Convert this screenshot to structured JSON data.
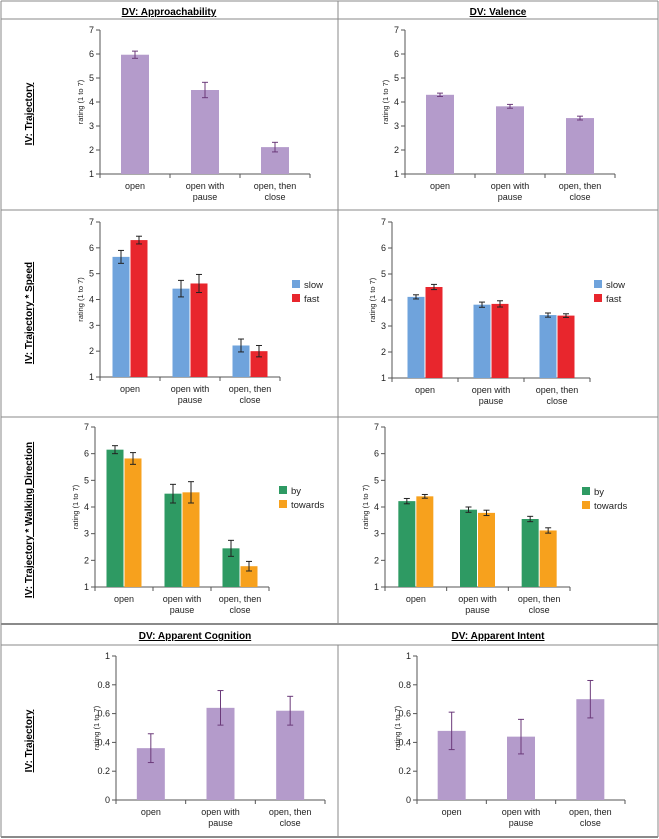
{
  "headers": {
    "approach": "DV: Approachability",
    "valence": "DV: Valence",
    "cognition": "DV: Apparent Cognition",
    "intent": "DV: Apparent Intent"
  },
  "rows": {
    "r1": "IV: Trajectory",
    "r2": "IV: Trajectory * Speed",
    "r3": "IV: Trajectory * Walking Direction",
    "r4": "IV: Trajectory"
  },
  "colors": {
    "purple": "#b49bcb",
    "purple_err": "#6b3a7a",
    "blue": "#6fa3dc",
    "red": "#e8262d",
    "green": "#2e9a63",
    "orange": "#f7a11d",
    "grid_border": "#888888"
  },
  "chart_data": [
    {
      "id": "c11",
      "type": "bar",
      "ylabel": "rating (1 to 7)",
      "ylim": [
        1,
        7
      ],
      "yticks": [
        "1",
        "2",
        "3",
        "4",
        "5",
        "6",
        "7"
      ],
      "categories": [
        [
          "open"
        ],
        [
          "open with",
          "pause"
        ],
        [
          "open, then",
          "close"
        ]
      ],
      "series": [
        {
          "color": "purple",
          "values": [
            5.97,
            4.5,
            2.12
          ],
          "err": [
            0.15,
            0.32,
            0.2
          ]
        }
      ]
    },
    {
      "id": "c12",
      "type": "bar",
      "ylabel": "rating (1 to 7)",
      "ylim": [
        1,
        7
      ],
      "yticks": [
        "1",
        "2",
        "3",
        "4",
        "5",
        "6",
        "7"
      ],
      "categories": [
        [
          "open"
        ],
        [
          "open with",
          "pause"
        ],
        [
          "open, then",
          "close"
        ]
      ],
      "series": [
        {
          "color": "purple",
          "values": [
            4.3,
            3.82,
            3.33
          ],
          "err": [
            0.07,
            0.08,
            0.08
          ]
        }
      ]
    },
    {
      "id": "c21",
      "type": "bar",
      "ylabel": "rating (1 to 7)",
      "ylim": [
        1,
        7
      ],
      "yticks": [
        "1",
        "2",
        "3",
        "4",
        "5",
        "6",
        "7"
      ],
      "categories": [
        [
          "open"
        ],
        [
          "open with",
          "pause"
        ],
        [
          "open, then",
          "close"
        ]
      ],
      "series": [
        {
          "name": "slow",
          "color": "blue",
          "values": [
            5.65,
            4.42,
            2.22
          ],
          "err": [
            0.25,
            0.32,
            0.25
          ]
        },
        {
          "name": "fast",
          "color": "red",
          "values": [
            6.3,
            4.62,
            2.0
          ],
          "err": [
            0.15,
            0.35,
            0.22
          ]
        }
      ]
    },
    {
      "id": "c22",
      "type": "bar",
      "ylabel": "rating (1 to 7)",
      "ylim": [
        1,
        7
      ],
      "yticks": [
        "1",
        "2",
        "3",
        "4",
        "5",
        "6",
        "7"
      ],
      "categories": [
        [
          "open"
        ],
        [
          "open with",
          "pause"
        ],
        [
          "open, then",
          "close"
        ]
      ],
      "series": [
        {
          "name": "slow",
          "color": "blue",
          "values": [
            4.12,
            3.82,
            3.42
          ],
          "err": [
            0.08,
            0.1,
            0.08
          ]
        },
        {
          "name": "fast",
          "color": "red",
          "values": [
            4.5,
            3.85,
            3.4
          ],
          "err": [
            0.1,
            0.12,
            0.07
          ]
        }
      ]
    },
    {
      "id": "c31",
      "type": "bar",
      "ylabel": "rating (1 to 7)",
      "ylim": [
        1,
        7
      ],
      "yticks": [
        "1",
        "2",
        "3",
        "4",
        "5",
        "6",
        "7"
      ],
      "categories": [
        [
          "open"
        ],
        [
          "open with",
          "pause"
        ],
        [
          "open, then",
          "close"
        ]
      ],
      "series": [
        {
          "name": "by",
          "color": "green",
          "values": [
            6.15,
            4.5,
            2.45
          ],
          "err": [
            0.15,
            0.35,
            0.3
          ]
        },
        {
          "name": "towards",
          "color": "orange",
          "values": [
            5.82,
            4.55,
            1.78
          ],
          "err": [
            0.22,
            0.4,
            0.18
          ]
        }
      ]
    },
    {
      "id": "c32",
      "type": "bar",
      "ylabel": "rating (1 to 7)",
      "ylim": [
        1,
        7
      ],
      "yticks": [
        "1",
        "2",
        "3",
        "4",
        "5",
        "6",
        "7"
      ],
      "categories": [
        [
          "open"
        ],
        [
          "open with",
          "pause"
        ],
        [
          "open, then",
          "close"
        ]
      ],
      "series": [
        {
          "name": "by",
          "color": "green",
          "values": [
            4.22,
            3.9,
            3.55
          ],
          "err": [
            0.1,
            0.1,
            0.1
          ]
        },
        {
          "name": "towards",
          "color": "orange",
          "values": [
            4.4,
            3.78,
            3.12
          ],
          "err": [
            0.07,
            0.1,
            0.1
          ]
        }
      ]
    },
    {
      "id": "c41",
      "type": "bar",
      "ylabel": "rating (1 to 7)",
      "ylim": [
        0,
        1
      ],
      "yticks": [
        "0",
        "0.2",
        "0.4",
        "0.6",
        "0.8",
        "1"
      ],
      "categories": [
        [
          "open"
        ],
        [
          "open with",
          "pause"
        ],
        [
          "open, then",
          "close"
        ]
      ],
      "series": [
        {
          "color": "purple",
          "values": [
            0.36,
            0.64,
            0.62
          ],
          "err": [
            0.1,
            0.12,
            0.1
          ]
        }
      ]
    },
    {
      "id": "c42",
      "type": "bar",
      "ylabel": "rating (1 to 7)",
      "ylim": [
        0,
        1
      ],
      "yticks": [
        "0",
        "0.2",
        "0.4",
        "0.6",
        "0.8",
        "1"
      ],
      "categories": [
        [
          "open"
        ],
        [
          "open with",
          "pause"
        ],
        [
          "open, then",
          "close"
        ]
      ],
      "series": [
        {
          "color": "purple",
          "values": [
            0.48,
            0.44,
            0.7
          ],
          "err": [
            0.13,
            0.12,
            0.13
          ]
        }
      ]
    }
  ]
}
